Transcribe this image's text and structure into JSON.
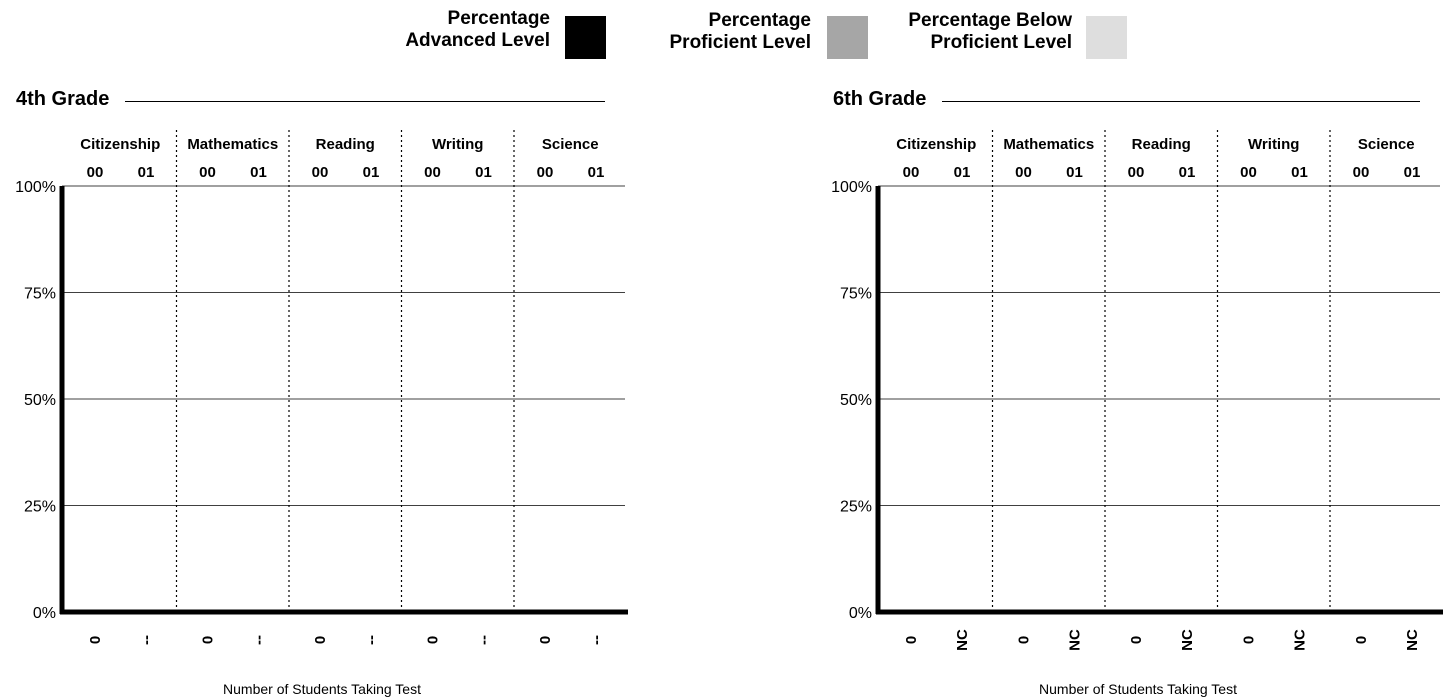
{
  "legend": [
    {
      "line1": "Percentage",
      "line2": "Advanced Level",
      "color": "#000000"
    },
    {
      "line1": "Percentage",
      "line2": "Proficient Level",
      "color": "#a6a6a6"
    },
    {
      "line1": "Percentage Below",
      "line2": "Proficient Level",
      "color": "#dedede"
    }
  ],
  "chart_data": [
    {
      "type": "bar",
      "title": "4th Grade",
      "subjects": [
        "Citizenship",
        "Mathematics",
        "Reading",
        "Writing",
        "Science"
      ],
      "years": [
        "00",
        "01"
      ],
      "ylim": [
        0,
        100
      ],
      "yticks": [
        "0%",
        "25%",
        "50%",
        "75%",
        "100%"
      ],
      "grid": true,
      "xlabel": "Number of Students Taking Test",
      "student_counts": [
        [
          "0",
          "--"
        ],
        [
          "0",
          "--"
        ],
        [
          "0",
          "--"
        ],
        [
          "0",
          "--"
        ],
        [
          "0",
          "--"
        ]
      ],
      "series": []
    },
    {
      "type": "bar",
      "title": "6th Grade",
      "subjects": [
        "Citizenship",
        "Mathematics",
        "Reading",
        "Writing",
        "Science"
      ],
      "years": [
        "00",
        "01"
      ],
      "ylim": [
        0,
        100
      ],
      "yticks": [
        "0%",
        "25%",
        "50%",
        "75%",
        "100%"
      ],
      "grid": true,
      "xlabel": "Number of Students Taking Test",
      "student_counts": [
        [
          "0",
          "NC"
        ],
        [
          "0",
          "NC"
        ],
        [
          "0",
          "NC"
        ],
        [
          "0",
          "NC"
        ],
        [
          "0",
          "NC"
        ]
      ],
      "series": []
    }
  ]
}
